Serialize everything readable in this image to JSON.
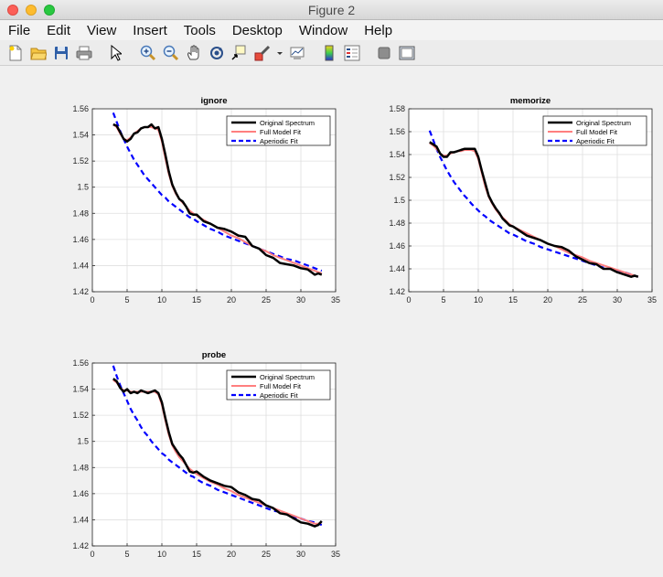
{
  "window": {
    "title": "Figure 2"
  },
  "menu": [
    "File",
    "Edit",
    "View",
    "Insert",
    "Tools",
    "Desktop",
    "Window",
    "Help"
  ],
  "toolbar": [
    "new-figure-icon",
    "open-file-icon",
    "save-icon",
    "print-icon",
    "sep",
    "pointer-icon",
    "sep",
    "zoom-in-icon",
    "zoom-out-icon",
    "pan-icon",
    "rotate-3d-icon",
    "data-cursor-icon",
    "brush-icon",
    "dropdown-arrow-icon",
    "link-plot-icon",
    "sep",
    "colorbar-icon",
    "legend-icon",
    "sep",
    "hide-plot-tools-icon",
    "show-plot-tools-icon"
  ],
  "colors": {
    "original": "#000000",
    "full_fit": "#ff7f7f",
    "aperiodic": "#0000ff"
  },
  "chart_data": [
    {
      "type": "line",
      "title": "ignore",
      "xlim": [
        0,
        35
      ],
      "ylim": [
        1.42,
        1.56
      ],
      "xticks": [
        "0",
        "5",
        "10",
        "15",
        "20",
        "25",
        "30",
        "35"
      ],
      "yticks": [
        "1.42",
        "1.44",
        "1.46",
        "1.48",
        "1.5",
        "1.52",
        "1.54",
        "1.56"
      ],
      "grid": true,
      "legend_position": "top-right",
      "x": [
        3,
        3.5,
        4,
        4.5,
        5,
        5.5,
        6,
        6.5,
        7,
        7.5,
        8,
        8.5,
        9,
        9.5,
        10,
        10.5,
        11,
        11.5,
        12,
        12.5,
        13,
        13.5,
        14,
        14.5,
        15,
        16,
        17,
        18,
        19,
        20,
        21,
        22,
        23,
        24,
        25,
        26,
        27,
        28,
        29,
        30,
        31,
        32,
        32.5,
        33
      ],
      "series": [
        {
          "name": "Original Spectrum",
          "values": [
            1.548,
            1.547,
            1.542,
            1.537,
            1.535,
            1.537,
            1.541,
            1.542,
            1.545,
            1.546,
            1.546,
            1.548,
            1.545,
            1.546,
            1.537,
            1.525,
            1.512,
            1.502,
            1.496,
            1.491,
            1.489,
            1.485,
            1.48,
            1.479,
            1.479,
            1.474,
            1.472,
            1.469,
            1.468,
            1.466,
            1.463,
            1.462,
            1.455,
            1.453,
            1.448,
            1.446,
            1.442,
            1.441,
            1.44,
            1.438,
            1.437,
            1.433,
            1.434,
            1.433
          ]
        },
        {
          "name": "Full Model Fit",
          "values": [
            1.548,
            1.546,
            1.541,
            1.537,
            1.536,
            1.538,
            1.541,
            1.543,
            1.545,
            1.546,
            1.546,
            1.546,
            1.545,
            1.544,
            1.535,
            1.522,
            1.51,
            1.501,
            1.495,
            1.491,
            1.488,
            1.485,
            1.482,
            1.48,
            1.478,
            1.475,
            1.472,
            1.469,
            1.466,
            1.463,
            1.461,
            1.458,
            1.455,
            1.453,
            1.451,
            1.448,
            1.446,
            1.444,
            1.442,
            1.44,
            1.438,
            1.436,
            1.435,
            1.434
          ]
        },
        {
          "name": "Aperiodic Fit",
          "values": [
            1.557,
            1.55,
            1.543,
            1.537,
            1.531,
            1.526,
            1.521,
            1.517,
            1.513,
            1.509,
            1.506,
            1.503,
            1.5,
            1.497,
            1.494,
            1.492,
            1.489,
            1.487,
            1.485,
            1.483,
            1.481,
            1.479,
            1.477,
            1.476,
            1.474,
            1.471,
            1.468,
            1.466,
            1.463,
            1.461,
            1.459,
            1.457,
            1.455,
            1.453,
            1.451,
            1.449,
            1.447,
            1.445,
            1.444,
            1.442,
            1.44,
            1.438,
            1.437,
            1.436
          ]
        }
      ]
    },
    {
      "type": "line",
      "title": "memorize",
      "xlim": [
        0,
        35
      ],
      "ylim": [
        1.42,
        1.58
      ],
      "xticks": [
        "0",
        "5",
        "10",
        "15",
        "20",
        "25",
        "30",
        "35"
      ],
      "yticks": [
        "1.42",
        "1.44",
        "1.46",
        "1.48",
        "1.5",
        "1.52",
        "1.54",
        "1.56",
        "1.58"
      ],
      "grid": true,
      "legend_position": "top-right",
      "x": [
        3,
        3.5,
        4,
        4.5,
        5,
        5.5,
        6,
        6.5,
        7,
        7.5,
        8,
        8.5,
        9,
        9.5,
        10,
        10.5,
        11,
        11.5,
        12,
        12.5,
        13,
        13.5,
        14,
        14.5,
        15,
        16,
        17,
        18,
        19,
        20,
        21,
        22,
        23,
        24,
        25,
        26,
        27,
        28,
        29,
        30,
        31,
        32,
        32.5,
        33
      ],
      "series": [
        {
          "name": "Original Spectrum",
          "values": [
            1.551,
            1.549,
            1.547,
            1.541,
            1.538,
            1.538,
            1.542,
            1.542,
            1.543,
            1.544,
            1.545,
            1.545,
            1.545,
            1.545,
            1.538,
            1.526,
            1.515,
            1.504,
            1.498,
            1.493,
            1.489,
            1.484,
            1.481,
            1.478,
            1.477,
            1.473,
            1.469,
            1.467,
            1.465,
            1.462,
            1.46,
            1.459,
            1.456,
            1.451,
            1.448,
            1.445,
            1.444,
            1.44,
            1.44,
            1.437,
            1.435,
            1.433,
            1.434,
            1.433
          ]
        },
        {
          "name": "Full Model Fit",
          "values": [
            1.55,
            1.548,
            1.545,
            1.541,
            1.539,
            1.539,
            1.541,
            1.542,
            1.543,
            1.543,
            1.544,
            1.544,
            1.544,
            1.543,
            1.536,
            1.524,
            1.512,
            1.503,
            1.497,
            1.492,
            1.488,
            1.485,
            1.482,
            1.479,
            1.477,
            1.474,
            1.471,
            1.468,
            1.465,
            1.462,
            1.46,
            1.457,
            1.454,
            1.452,
            1.45,
            1.447,
            1.445,
            1.443,
            1.441,
            1.439,
            1.437,
            1.435,
            1.434,
            1.433
          ]
        },
        {
          "name": "Aperiodic Fit",
          "values": [
            1.561,
            1.553,
            1.545,
            1.538,
            1.532,
            1.526,
            1.521,
            1.516,
            1.512,
            1.508,
            1.504,
            1.501,
            1.497,
            1.494,
            1.491,
            1.488,
            1.486,
            1.483,
            1.481,
            1.479,
            1.477,
            1.475,
            1.473,
            1.471,
            1.47,
            1.467,
            1.464,
            1.462,
            1.459,
            1.457,
            1.455,
            1.453,
            1.451,
            1.449,
            1.447,
            1.445,
            1.443,
            1.441,
            1.44,
            1.438,
            1.437,
            1.435,
            1.434,
            1.433
          ]
        }
      ]
    },
    {
      "type": "line",
      "title": "probe",
      "xlim": [
        0,
        35
      ],
      "ylim": [
        1.42,
        1.56
      ],
      "xticks": [
        "0",
        "5",
        "10",
        "15",
        "20",
        "25",
        "30",
        "35"
      ],
      "yticks": [
        "1.42",
        "1.44",
        "1.46",
        "1.48",
        "1.5",
        "1.52",
        "1.54",
        "1.56"
      ],
      "grid": true,
      "legend_position": "top-right",
      "x": [
        3,
        3.5,
        4,
        4.5,
        5,
        5.5,
        6,
        6.5,
        7,
        7.5,
        8,
        8.5,
        9,
        9.5,
        10,
        10.5,
        11,
        11.5,
        12,
        12.5,
        13,
        13.5,
        14,
        14.5,
        15,
        16,
        17,
        18,
        19,
        20,
        21,
        22,
        23,
        24,
        25,
        26,
        27,
        28,
        29,
        30,
        31,
        32,
        32.5,
        33
      ],
      "series": [
        {
          "name": "Original Spectrum",
          "values": [
            1.548,
            1.546,
            1.541,
            1.538,
            1.54,
            1.537,
            1.538,
            1.537,
            1.539,
            1.538,
            1.537,
            1.538,
            1.539,
            1.537,
            1.53,
            1.518,
            1.507,
            1.498,
            1.494,
            1.49,
            1.487,
            1.482,
            1.477,
            1.476,
            1.477,
            1.473,
            1.47,
            1.468,
            1.466,
            1.465,
            1.461,
            1.459,
            1.456,
            1.455,
            1.451,
            1.449,
            1.445,
            1.444,
            1.441,
            1.438,
            1.437,
            1.435,
            1.436,
            1.439
          ]
        },
        {
          "name": "Full Model Fit",
          "values": [
            1.547,
            1.545,
            1.541,
            1.539,
            1.539,
            1.538,
            1.538,
            1.538,
            1.538,
            1.538,
            1.538,
            1.538,
            1.538,
            1.536,
            1.528,
            1.516,
            1.505,
            1.497,
            1.492,
            1.488,
            1.485,
            1.482,
            1.479,
            1.477,
            1.475,
            1.472,
            1.469,
            1.467,
            1.464,
            1.462,
            1.459,
            1.457,
            1.455,
            1.453,
            1.451,
            1.449,
            1.447,
            1.445,
            1.443,
            1.441,
            1.439,
            1.437,
            1.437,
            1.438
          ]
        },
        {
          "name": "Aperiodic Fit",
          "values": [
            1.558,
            1.55,
            1.543,
            1.537,
            1.531,
            1.525,
            1.52,
            1.516,
            1.511,
            1.507,
            1.504,
            1.5,
            1.497,
            1.494,
            1.491,
            1.489,
            1.486,
            1.484,
            1.482,
            1.48,
            1.478,
            1.476,
            1.474,
            1.473,
            1.471,
            1.468,
            1.466,
            1.463,
            1.461,
            1.459,
            1.457,
            1.455,
            1.453,
            1.451,
            1.449,
            1.447,
            1.446,
            1.444,
            1.442,
            1.441,
            1.439,
            1.438,
            1.437,
            1.436
          ]
        }
      ]
    }
  ]
}
